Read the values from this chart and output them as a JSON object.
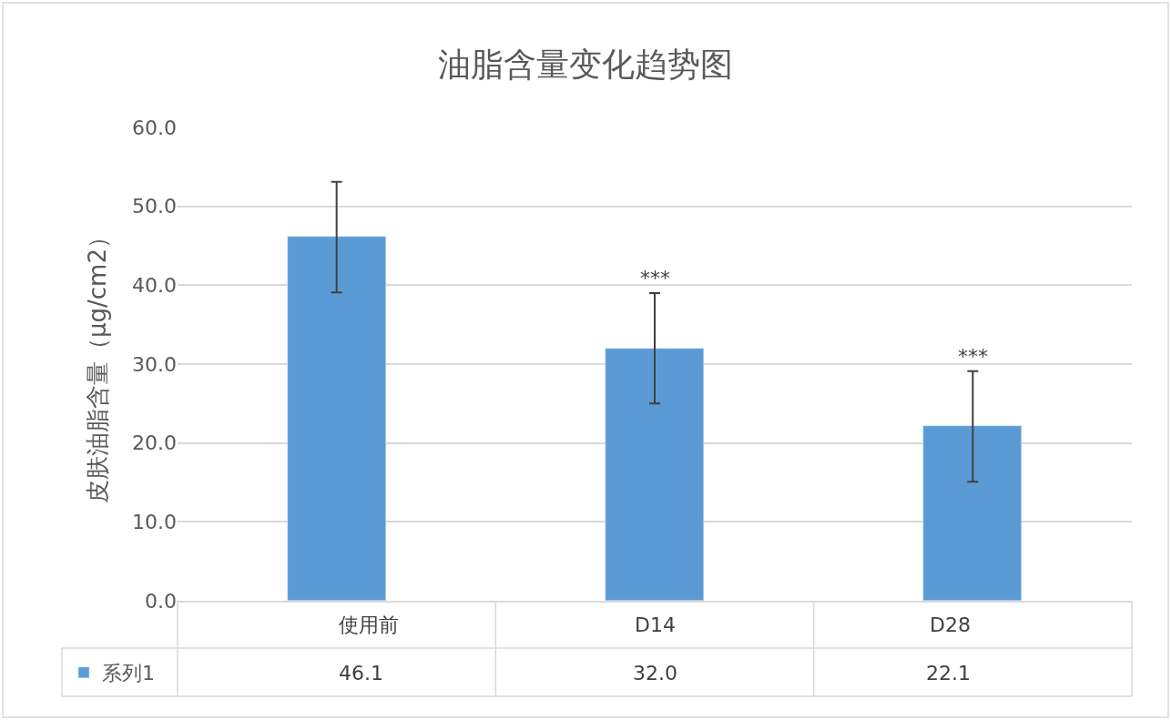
{
  "chart_data": {
    "type": "bar",
    "title": "油脂含量变化趋势图",
    "ylabel": "皮肤油脂含量（μg/cm2）",
    "categories": [
      "使用前",
      "D14",
      "D28"
    ],
    "series": [
      {
        "name": "系列1",
        "color": "#5b9bd5",
        "values": [
          46.1,
          32.0,
          22.1
        ],
        "value_labels": [
          "46.1",
          "32.0",
          "22.1"
        ],
        "errors": [
          7,
          7,
          7
        ]
      }
    ],
    "ylim": [
      0,
      60
    ],
    "yticks": [
      {
        "value": 0,
        "label": "0.0"
      },
      {
        "value": 10,
        "label": "10.0"
      },
      {
        "value": 20,
        "label": "20.0"
      },
      {
        "value": 30,
        "label": "30.0"
      },
      {
        "value": 40,
        "label": "40.0"
      },
      {
        "value": 50,
        "label": "50.0"
      },
      {
        "value": 60,
        "label": "60.0"
      }
    ],
    "grid": "y",
    "legend": "bottom left",
    "annotations": [
      "***",
      "***"
    ]
  }
}
